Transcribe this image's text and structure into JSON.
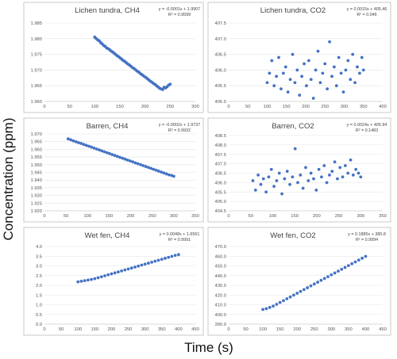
{
  "figure": {
    "ylabel": "Concentration (ppm)",
    "xlabel": "Time (s)"
  },
  "chart_data": [
    {
      "type": "scatter",
      "title": "Lichen tundra, CH4",
      "equation": "y = -0.0001x + 1.9907",
      "r2": "R² = 0.9599",
      "xlim": [
        0,
        300
      ],
      "xticks": [
        0,
        50,
        100,
        150,
        200,
        250,
        300
      ],
      "ylim": [
        1.96,
        1.985
      ],
      "yticks": [
        "1.960",
        "1.965",
        "1.970",
        "1.975",
        "1.980",
        "1.985"
      ],
      "color": "#4472c4",
      "x": [
        100,
        103,
        106,
        109,
        112,
        115,
        118,
        121,
        124,
        127,
        130,
        133,
        136,
        139,
        142,
        145,
        148,
        151,
        154,
        157,
        160,
        163,
        166,
        169,
        172,
        175,
        178,
        181,
        184,
        187,
        190,
        193,
        196,
        199,
        202,
        205,
        208,
        211,
        214,
        217,
        220,
        223,
        226,
        229,
        232,
        235,
        238,
        241,
        244,
        247,
        250
      ],
      "y": [
        1.9805,
        1.98,
        1.9796,
        1.9793,
        1.9787,
        1.9783,
        1.9778,
        1.9775,
        1.977,
        1.9768,
        1.9764,
        1.976,
        1.9757,
        1.9753,
        1.9749,
        1.9745,
        1.9742,
        1.9738,
        1.9734,
        1.973,
        1.9727,
        1.9723,
        1.9719,
        1.9716,
        1.9712,
        1.9708,
        1.9705,
        1.9701,
        1.9697,
        1.9694,
        1.969,
        1.9686,
        1.9683,
        1.9679,
        1.9676,
        1.9672,
        1.9668,
        1.9664,
        1.9661,
        1.9657,
        1.9654,
        1.965,
        1.9646,
        1.9642,
        1.964,
        1.9638,
        1.9645,
        1.9643,
        1.9647,
        1.9652,
        1.9655
      ]
    },
    {
      "type": "scatter",
      "title": "Lichen tundra, CO2",
      "equation": "y = 0.0015x + 405.46",
      "r2": "R² = 0.046",
      "xlim": [
        0,
        400
      ],
      "xticks": [
        0,
        50,
        100,
        150,
        200,
        250,
        300,
        350,
        400
      ],
      "ylim": [
        405,
        407.5
      ],
      "yticks": [
        "405.0",
        "405.5",
        "406.0",
        "406.5",
        "407.0",
        "407.5"
      ],
      "color": "#4472c4",
      "x": [
        100,
        106,
        112,
        118,
        124,
        130,
        136,
        142,
        148,
        154,
        160,
        166,
        172,
        178,
        184,
        190,
        196,
        202,
        208,
        214,
        220,
        226,
        232,
        238,
        244,
        250,
        256,
        262,
        268,
        274,
        280,
        286,
        292,
        298,
        304,
        310,
        316,
        322,
        328,
        334,
        340,
        346,
        350
      ],
      "y": [
        405.6,
        405.9,
        406.3,
        405.5,
        405.8,
        406.4,
        405.4,
        405.9,
        406.1,
        405.3,
        405.7,
        406.5,
        405.6,
        406.0,
        405.2,
        405.8,
        406.2,
        405.5,
        406.3,
        405.7,
        405.1,
        406.0,
        406.6,
        405.6,
        405.9,
        406.2,
        405.4,
        406.9,
        405.8,
        406.1,
        405.5,
        406.4,
        405.9,
        405.3,
        406.0,
        406.3,
        405.7,
        406.5,
        405.6,
        406.1,
        405.9,
        406.4,
        406.0
      ]
    },
    {
      "type": "scatter",
      "title": "Barren, CH4",
      "equation": "y = -0.0002x + 1.9737",
      "r2": "R² = 0.9932",
      "xlim": [
        0,
        350
      ],
      "xticks": [
        0,
        50,
        100,
        150,
        200,
        250,
        300,
        350
      ],
      "ylim": [
        1.92,
        1.97
      ],
      "yticks": [
        "1.920",
        "1.925",
        "1.930",
        "1.935",
        "1.940",
        "1.945",
        "1.950",
        "1.955",
        "1.960",
        "1.965",
        "1.970"
      ],
      "color": "#4472c4",
      "x": [
        55,
        61,
        67,
        73,
        79,
        85,
        91,
        97,
        103,
        109,
        115,
        121,
        127,
        133,
        139,
        145,
        151,
        157,
        163,
        169,
        175,
        181,
        187,
        193,
        199,
        205,
        211,
        217,
        223,
        229,
        235,
        241,
        247,
        253,
        259,
        265,
        271,
        277,
        283,
        289,
        295,
        300
      ],
      "y": [
        1.9668,
        1.9662,
        1.9655,
        1.9649,
        1.9643,
        1.9638,
        1.9632,
        1.9626,
        1.962,
        1.9614,
        1.9608,
        1.9602,
        1.9596,
        1.959,
        1.9584,
        1.9578,
        1.9572,
        1.9566,
        1.956,
        1.9554,
        1.9548,
        1.9542,
        1.9536,
        1.953,
        1.9524,
        1.9518,
        1.9512,
        1.9506,
        1.95,
        1.9494,
        1.9488,
        1.9482,
        1.9476,
        1.947,
        1.9464,
        1.9458,
        1.9452,
        1.9446,
        1.944,
        1.9434,
        1.943,
        1.9425
      ]
    },
    {
      "type": "scatter",
      "title": "Barren, CO2",
      "equation": "y = 0.0024x + 405.94",
      "r2": "R² = 0.1483",
      "xlim": [
        0,
        350
      ],
      "xticks": [
        0,
        50,
        100,
        150,
        200,
        250,
        300,
        350
      ],
      "ylim": [
        404.5,
        408.5
      ],
      "yticks": [
        "404.5",
        "405.0",
        "405.5",
        "406.0",
        "406.5",
        "407.0",
        "407.5",
        "408.0",
        "408.5"
      ],
      "color": "#4472c4",
      "x": [
        55,
        61,
        67,
        73,
        79,
        85,
        91,
        97,
        103,
        109,
        115,
        121,
        127,
        133,
        139,
        145,
        151,
        157,
        163,
        169,
        175,
        181,
        187,
        193,
        199,
        205,
        211,
        217,
        223,
        229,
        235,
        241,
        247,
        253,
        259,
        265,
        271,
        277,
        283,
        289,
        295,
        300
      ],
      "y": [
        406.1,
        405.6,
        406.4,
        405.9,
        406.2,
        405.5,
        406.3,
        406.7,
        405.8,
        406.1,
        406.5,
        405.4,
        406.2,
        406.6,
        405.9,
        406.3,
        407.8,
        406.0,
        406.4,
        405.7,
        406.8,
        406.1,
        406.5,
        406.2,
        405.6,
        406.7,
        406.3,
        406.9,
        406.0,
        406.4,
        406.6,
        407.1,
        406.2,
        406.8,
        406.3,
        406.9,
        406.5,
        407.2,
        406.4,
        406.7,
        406.5,
        406.3
      ]
    },
    {
      "type": "scatter",
      "title": "Wet fen, CH4",
      "equation": "y = 0.0048x + 1.6561",
      "r2": "R² = 0.9991",
      "xlim": [
        0,
        450
      ],
      "xticks": [
        0,
        50,
        100,
        150,
        200,
        250,
        300,
        350,
        400,
        450
      ],
      "ylim": [
        0,
        4
      ],
      "yticks": [
        "0.0",
        "0.5",
        "1.0",
        "1.5",
        "2.0",
        "2.5",
        "3.0",
        "3.5",
        "4.0"
      ],
      "color": "#4472c4",
      "x": [
        100,
        110,
        120,
        130,
        140,
        150,
        160,
        170,
        180,
        190,
        200,
        210,
        220,
        230,
        240,
        250,
        260,
        270,
        280,
        290,
        300,
        310,
        320,
        330,
        340,
        350,
        360,
        370,
        380,
        390,
        400
      ],
      "y": [
        2.18,
        2.21,
        2.24,
        2.27,
        2.3,
        2.34,
        2.39,
        2.44,
        2.49,
        2.54,
        2.59,
        2.64,
        2.69,
        2.74,
        2.79,
        2.84,
        2.89,
        2.94,
        2.99,
        3.04,
        3.09,
        3.14,
        3.19,
        3.24,
        3.29,
        3.34,
        3.39,
        3.44,
        3.49,
        3.54,
        3.58
      ]
    },
    {
      "type": "scatter",
      "title": "Wet fen, CO2",
      "equation": "y = 0.1885x + 385.8",
      "r2": "R² = 0.9994",
      "xlim": [
        0,
        450
      ],
      "xticks": [
        0,
        50,
        100,
        150,
        200,
        250,
        300,
        350,
        400,
        450
      ],
      "ylim": [
        390,
        470
      ],
      "yticks": [
        "390.0",
        "400.0",
        "410.0",
        "420.0",
        "430.0",
        "440.0",
        "450.0",
        "460.0",
        "470.0"
      ],
      "color": "#4472c4",
      "x": [
        100,
        110,
        120,
        130,
        140,
        150,
        160,
        170,
        180,
        190,
        200,
        210,
        220,
        230,
        240,
        250,
        260,
        270,
        280,
        290,
        300,
        310,
        320,
        330,
        340,
        350,
        360,
        370,
        380,
        390,
        400
      ],
      "y": [
        405.1,
        405.9,
        407.2,
        408.6,
        410.4,
        412.3,
        414.2,
        416.1,
        418.0,
        419.9,
        421.8,
        423.7,
        425.6,
        427.5,
        429.4,
        431.3,
        433.2,
        435.1,
        437.0,
        438.9,
        440.8,
        442.7,
        444.6,
        446.5,
        448.4,
        450.3,
        452.2,
        454.1,
        456.0,
        457.9,
        459.8
      ]
    }
  ]
}
